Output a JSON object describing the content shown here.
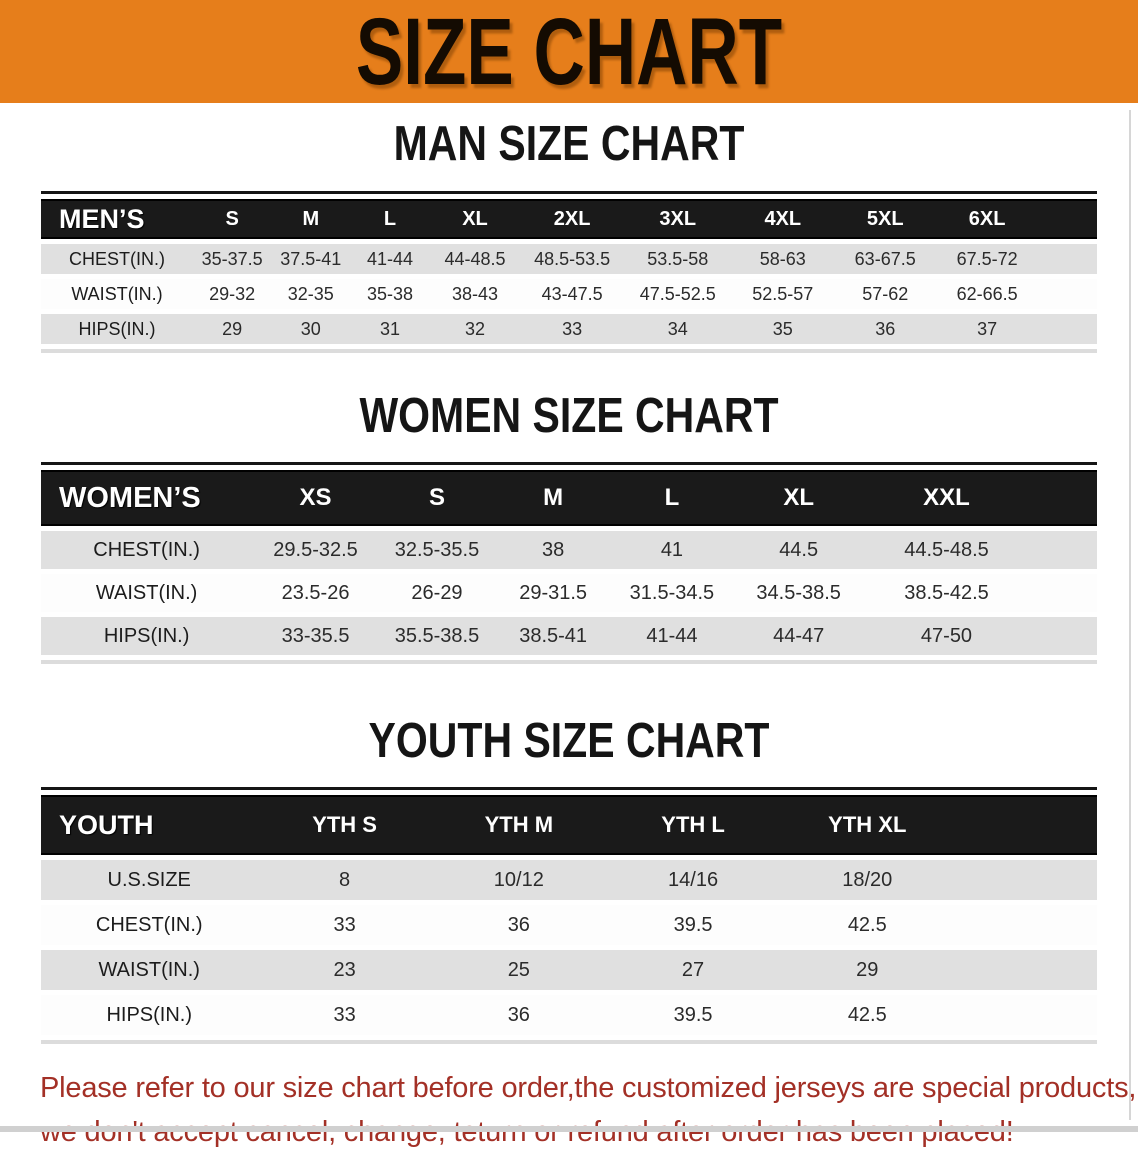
{
  "banner": {
    "title": "SIZE CHART",
    "bg_color": "#E67E1B"
  },
  "sections": [
    {
      "id": "men",
      "heading": "MAN SIZE CHART",
      "corner_label": "MEN’S",
      "columns": [
        "S",
        "M",
        "L",
        "XL",
        "2XL",
        "3XL",
        "4XL",
        "5XL",
        "6XL"
      ],
      "rows": [
        {
          "label": "CHEST(IN.)",
          "values": [
            "35-37.5",
            "37.5-41",
            "41-44",
            "44-48.5",
            "48.5-53.5",
            "53.5-58",
            "58-63",
            "63-67.5",
            "67.5-72"
          ]
        },
        {
          "label": "WAIST(IN.)",
          "values": [
            "29-32",
            "32-35",
            "35-38",
            "38-43",
            "43-47.5",
            "47.5-52.5",
            "52.5-57",
            "57-62",
            "62-66.5"
          ]
        },
        {
          "label": "HIPS(IN.)",
          "values": [
            "29",
            "30",
            "31",
            "32",
            "33",
            "34",
            "35",
            "36",
            "37"
          ]
        }
      ]
    },
    {
      "id": "women",
      "heading": "WOMEN SIZE CHART",
      "corner_label": "WOMEN’S",
      "columns": [
        "XS",
        "S",
        "M",
        "L",
        "XL",
        "XXL"
      ],
      "rows": [
        {
          "label": "CHEST(IN.)",
          "values": [
            "29.5-32.5",
            "32.5-35.5",
            "38",
            "41",
            "44.5",
            "44.5-48.5"
          ]
        },
        {
          "label": "WAIST(IN.)",
          "values": [
            "23.5-26",
            "26-29",
            "29-31.5",
            "31.5-34.5",
            "34.5-38.5",
            "38.5-42.5"
          ]
        },
        {
          "label": "HIPS(IN.)",
          "values": [
            "33-35.5",
            "35.5-38.5",
            "38.5-41",
            "41-44",
            "44-47",
            "47-50"
          ]
        }
      ]
    },
    {
      "id": "youth",
      "heading": "YOUTH SIZE CHART",
      "corner_label": "YOUTH",
      "columns": [
        "YTH S",
        "YTH M",
        "YTH L",
        "YTH XL"
      ],
      "rows": [
        {
          "label": "U.S.SIZE",
          "values": [
            "8",
            "10/12",
            "14/16",
            "18/20"
          ]
        },
        {
          "label": "CHEST(IN.)",
          "values": [
            "33",
            "36",
            "39.5",
            "42.5"
          ]
        },
        {
          "label": "WAIST(IN.)",
          "values": [
            "23",
            "25",
            "27",
            "29"
          ]
        },
        {
          "label": "HIPS(IN.)",
          "values": [
            "33",
            "36",
            "39.5",
            "42.5"
          ]
        }
      ]
    }
  ],
  "footer": {
    "line1": "Please refer to our size chart before order,the customized jerseys are special products,",
    "line2": "we don't accept cancel, change, teturn or refund after order has been placed!",
    "text_color": "#A33026"
  }
}
